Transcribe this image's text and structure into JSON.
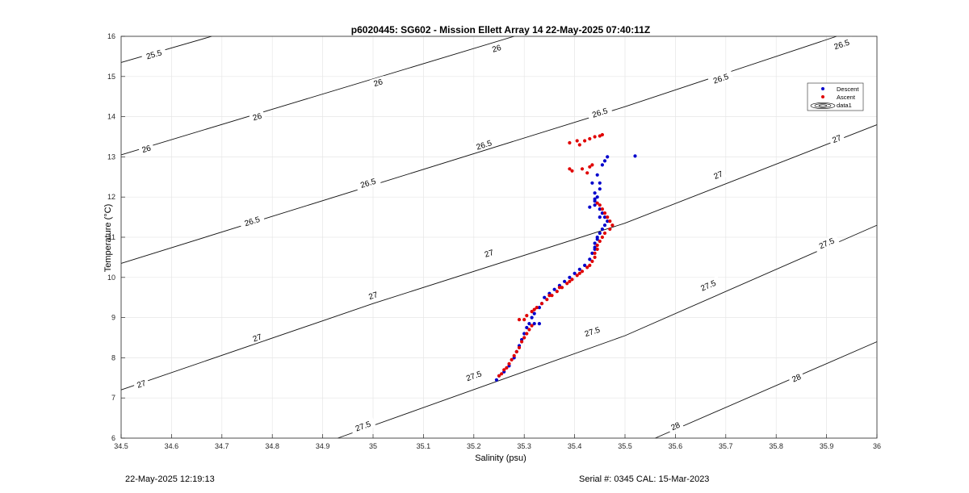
{
  "chart_data": {
    "type": "scatter",
    "title": "p6020445: SG602 - Mission Ellett Array 14 22-May-2025 07:40:11Z",
    "xlabel": "Salinity (psu)",
    "ylabel": "Temperature (°C)",
    "xlim": [
      34.5,
      36
    ],
    "ylim": [
      6,
      16
    ],
    "x_ticks": [
      "34.5",
      "34.6",
      "34.7",
      "34.8",
      "34.9",
      "35",
      "35.1",
      "35.2",
      "35.3",
      "35.4",
      "35.5",
      "35.6",
      "35.7",
      "35.8",
      "35.9",
      "36"
    ],
    "y_ticks": [
      "6",
      "7",
      "8",
      "9",
      "10",
      "11",
      "12",
      "13",
      "14",
      "15",
      "16"
    ],
    "grid": true,
    "legend": {
      "placement": "top-right",
      "entries": [
        "Descent",
        "Ascent",
        "data1"
      ]
    },
    "contours": {
      "name": "data1",
      "levels": [
        25.5,
        26,
        26.5,
        27,
        27.5,
        28
      ],
      "lines": [
        {
          "level": 25.5,
          "points": [
            [
              34.5,
              15.35
            ],
            [
              34.68,
              16.0
            ]
          ]
        },
        {
          "level": 26,
          "points": [
            [
              34.5,
              13.05
            ],
            [
              35.28,
              16.0
            ]
          ]
        },
        {
          "level": 26.5,
          "points": [
            [
              34.5,
              10.35
            ],
            [
              35.0,
              12.3
            ],
            [
              35.5,
              14.25
            ],
            [
              35.92,
              16.0
            ]
          ]
        },
        {
          "level": 27,
          "points": [
            [
              34.5,
              7.2
            ],
            [
              35.0,
              9.35
            ],
            [
              35.5,
              11.35
            ],
            [
              36.0,
              13.8
            ]
          ]
        },
        {
          "level": 27.5,
          "points": [
            [
              34.93,
              6.0
            ],
            [
              35.5,
              8.55
            ],
            [
              36.0,
              11.3
            ]
          ]
        },
        {
          "level": 28,
          "points": [
            [
              35.56,
              6.0
            ],
            [
              36.0,
              8.4
            ]
          ]
        }
      ],
      "labels": [
        {
          "text": "25.5",
          "x": 34.565,
          "y": 15.55
        },
        {
          "text": "26",
          "x": 34.55,
          "y": 13.2
        },
        {
          "text": "26",
          "x": 34.77,
          "y": 14.0
        },
        {
          "text": "26",
          "x": 35.01,
          "y": 14.85
        },
        {
          "text": "26",
          "x": 35.245,
          "y": 15.7
        },
        {
          "text": "26.5",
          "x": 34.76,
          "y": 11.4
        },
        {
          "text": "26.5",
          "x": 34.99,
          "y": 12.35
        },
        {
          "text": "26.5",
          "x": 35.22,
          "y": 13.3
        },
        {
          "text": "26.5",
          "x": 35.45,
          "y": 14.1
        },
        {
          "text": "26.5",
          "x": 35.69,
          "y": 14.95
        },
        {
          "text": "26.5",
          "x": 35.93,
          "y": 15.8
        },
        {
          "text": "27",
          "x": 34.54,
          "y": 7.35
        },
        {
          "text": "27",
          "x": 34.77,
          "y": 8.5
        },
        {
          "text": "27",
          "x": 35.0,
          "y": 9.55
        },
        {
          "text": "27",
          "x": 35.23,
          "y": 10.6
        },
        {
          "text": "27",
          "x": 35.685,
          "y": 12.55
        },
        {
          "text": "27",
          "x": 35.92,
          "y": 13.45
        },
        {
          "text": "27.5",
          "x": 34.98,
          "y": 6.3
        },
        {
          "text": "27.5",
          "x": 35.2,
          "y": 7.55
        },
        {
          "text": "27.5",
          "x": 35.435,
          "y": 8.65
        },
        {
          "text": "27.5",
          "x": 35.665,
          "y": 9.8
        },
        {
          "text": "27.5",
          "x": 35.9,
          "y": 10.85
        },
        {
          "text": "28",
          "x": 35.6,
          "y": 6.3
        },
        {
          "text": "28",
          "x": 35.84,
          "y": 7.5
        }
      ]
    },
    "series": [
      {
        "name": "Descent",
        "color": "#0000cc",
        "points": [
          [
            35.245,
            7.45
          ],
          [
            35.25,
            7.55
          ],
          [
            35.26,
            7.65
          ],
          [
            35.27,
            7.8
          ],
          [
            35.28,
            8.0
          ],
          [
            35.285,
            8.15
          ],
          [
            35.29,
            8.3
          ],
          [
            35.295,
            8.45
          ],
          [
            35.3,
            8.6
          ],
          [
            35.305,
            8.75
          ],
          [
            35.31,
            8.85
          ],
          [
            35.32,
            8.85
          ],
          [
            35.33,
            8.85
          ],
          [
            35.315,
            9.0
          ],
          [
            35.32,
            9.1
          ],
          [
            35.33,
            9.25
          ],
          [
            35.335,
            9.35
          ],
          [
            35.34,
            9.5
          ],
          [
            35.35,
            9.6
          ],
          [
            35.36,
            9.7
          ],
          [
            35.37,
            9.8
          ],
          [
            35.38,
            9.9
          ],
          [
            35.39,
            10.0
          ],
          [
            35.4,
            10.1
          ],
          [
            35.41,
            10.2
          ],
          [
            35.42,
            10.3
          ],
          [
            35.43,
            10.45
          ],
          [
            35.435,
            10.6
          ],
          [
            35.44,
            10.7
          ],
          [
            35.44,
            10.85
          ],
          [
            35.445,
            11.0
          ],
          [
            35.45,
            11.1
          ],
          [
            35.455,
            11.2
          ],
          [
            35.46,
            11.3
          ],
          [
            35.465,
            11.4
          ],
          [
            35.46,
            11.5
          ],
          [
            35.455,
            11.6
          ],
          [
            35.45,
            11.7
          ],
          [
            35.44,
            11.8
          ],
          [
            35.43,
            11.75
          ],
          [
            35.44,
            11.9
          ],
          [
            35.445,
            12.0
          ],
          [
            35.44,
            12.1
          ],
          [
            35.45,
            12.2
          ],
          [
            35.45,
            12.35
          ],
          [
            35.445,
            12.55
          ],
          [
            35.455,
            12.8
          ],
          [
            35.46,
            12.9
          ],
          [
            35.465,
            13.0
          ],
          [
            35.52,
            13.02
          ],
          [
            35.435,
            12.35
          ],
          [
            35.44,
            11.95
          ],
          [
            35.45,
            11.5
          ],
          [
            35.445,
            10.95
          ],
          [
            35.44,
            10.75
          ]
        ]
      },
      {
        "name": "Ascent",
        "color": "#e00000",
        "points": [
          [
            35.25,
            7.55
          ],
          [
            35.255,
            7.6
          ],
          [
            35.26,
            7.7
          ],
          [
            35.265,
            7.75
          ],
          [
            35.27,
            7.85
          ],
          [
            35.275,
            7.95
          ],
          [
            35.28,
            8.05
          ],
          [
            35.285,
            8.15
          ],
          [
            35.29,
            8.25
          ],
          [
            35.295,
            8.4
          ],
          [
            35.3,
            8.5
          ],
          [
            35.305,
            8.6
          ],
          [
            35.31,
            8.7
          ],
          [
            35.315,
            8.8
          ],
          [
            35.3,
            8.95
          ],
          [
            35.29,
            8.95
          ],
          [
            35.305,
            9.05
          ],
          [
            35.315,
            9.15
          ],
          [
            35.325,
            9.25
          ],
          [
            35.335,
            9.35
          ],
          [
            35.345,
            9.45
          ],
          [
            35.355,
            9.55
          ],
          [
            35.365,
            9.65
          ],
          [
            35.375,
            9.75
          ],
          [
            35.385,
            9.85
          ],
          [
            35.395,
            9.95
          ],
          [
            35.405,
            10.05
          ],
          [
            35.415,
            10.15
          ],
          [
            35.425,
            10.25
          ],
          [
            35.43,
            10.3
          ],
          [
            35.435,
            10.4
          ],
          [
            35.44,
            10.5
          ],
          [
            35.44,
            10.6
          ],
          [
            35.445,
            10.7
          ],
          [
            35.445,
            10.8
          ],
          [
            35.45,
            10.9
          ],
          [
            35.455,
            11.0
          ],
          [
            35.46,
            11.1
          ],
          [
            35.47,
            11.2
          ],
          [
            35.475,
            11.3
          ],
          [
            35.47,
            11.4
          ],
          [
            35.465,
            11.5
          ],
          [
            35.46,
            11.6
          ],
          [
            35.455,
            11.7
          ],
          [
            35.45,
            11.8
          ],
          [
            35.445,
            11.85
          ],
          [
            35.39,
            12.7
          ],
          [
            35.395,
            12.65
          ],
          [
            35.415,
            12.7
          ],
          [
            35.43,
            12.75
          ],
          [
            35.425,
            12.6
          ],
          [
            35.435,
            12.8
          ],
          [
            35.39,
            13.35
          ],
          [
            35.405,
            13.4
          ],
          [
            35.41,
            13.3
          ],
          [
            35.42,
            13.4
          ],
          [
            35.43,
            13.45
          ],
          [
            35.44,
            13.5
          ],
          [
            35.45,
            13.52
          ],
          [
            35.455,
            13.55
          ],
          [
            35.35,
            9.55
          ],
          [
            35.37,
            9.75
          ],
          [
            35.39,
            9.9
          ],
          [
            35.41,
            10.1
          ],
          [
            35.32,
            9.2
          ]
        ]
      }
    ]
  },
  "footer": {
    "left": "22-May-2025 12:19:13",
    "right": "Serial #: 0345  CAL: 15-Mar-2023"
  }
}
